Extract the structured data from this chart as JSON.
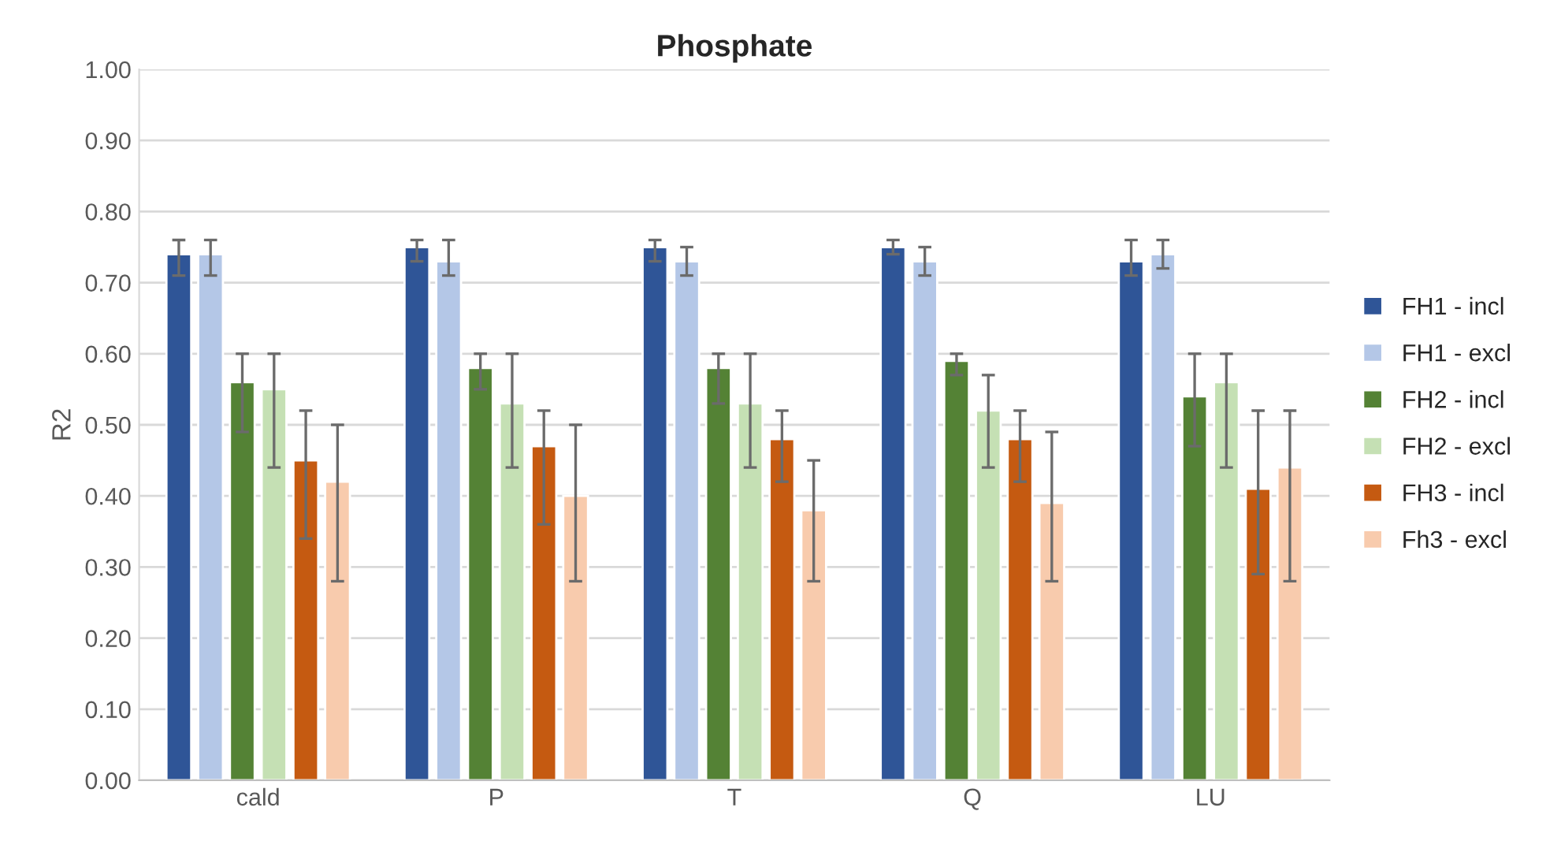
{
  "chart_data": {
    "type": "bar",
    "title": "Phosphate",
    "ylabel": "R2",
    "categories": [
      "cald",
      "P",
      "T",
      "Q",
      "LU"
    ],
    "ylim": [
      0,
      1
    ],
    "yticks": [
      {
        "value": 0,
        "label": "0.00"
      },
      {
        "value": 0.1,
        "label": "0.10"
      },
      {
        "value": 0.2,
        "label": "0.20"
      },
      {
        "value": 0.3,
        "label": "0.30"
      },
      {
        "value": 0.4,
        "label": "0.40"
      },
      {
        "value": 0.5,
        "label": "0.50"
      },
      {
        "value": 0.6,
        "label": "0.60"
      },
      {
        "value": 0.7,
        "label": "0.70"
      },
      {
        "value": 0.8,
        "label": "0.80"
      },
      {
        "value": 0.9,
        "label": "0.90"
      },
      {
        "value": 1,
        "label": "1.00"
      }
    ],
    "grid": "y",
    "legend": "right",
    "series": [
      {
        "name": "FH1 - incl",
        "color": "#2f5597",
        "values": [
          0.74,
          0.75,
          0.75,
          0.75,
          0.73
        ],
        "errors": [
          [
            0.71,
            0.76
          ],
          [
            0.73,
            0.76
          ],
          [
            0.73,
            0.76
          ],
          [
            0.74,
            0.76
          ],
          [
            0.71,
            0.76
          ]
        ]
      },
      {
        "name": "FH1 - excl",
        "color": "#b4c7e7",
        "values": [
          0.74,
          0.73,
          0.73,
          0.73,
          0.74
        ],
        "errors": [
          [
            0.71,
            0.76
          ],
          [
            0.71,
            0.76
          ],
          [
            0.71,
            0.75
          ],
          [
            0.71,
            0.75
          ],
          [
            0.72,
            0.76
          ]
        ]
      },
      {
        "name": "FH2 - incl",
        "color": "#548235",
        "values": [
          0.56,
          0.58,
          0.58,
          0.59,
          0.54
        ],
        "errors": [
          [
            0.49,
            0.6
          ],
          [
            0.55,
            0.6
          ],
          [
            0.53,
            0.6
          ],
          [
            0.57,
            0.6
          ],
          [
            0.47,
            0.6
          ]
        ]
      },
      {
        "name": "FH2 - excl",
        "color": "#c5e0b4",
        "values": [
          0.55,
          0.53,
          0.53,
          0.52,
          0.56
        ],
        "errors": [
          [
            0.44,
            0.6
          ],
          [
            0.44,
            0.6
          ],
          [
            0.44,
            0.6
          ],
          [
            0.44,
            0.57
          ],
          [
            0.44,
            0.6
          ]
        ]
      },
      {
        "name": "FH3 - incl",
        "color": "#c55a11",
        "values": [
          0.45,
          0.47,
          0.48,
          0.48,
          0.41
        ],
        "errors": [
          [
            0.34,
            0.52
          ],
          [
            0.36,
            0.52
          ],
          [
            0.42,
            0.52
          ],
          [
            0.42,
            0.52
          ],
          [
            0.29,
            0.52
          ]
        ]
      },
      {
        "name": "Fh3 - excl",
        "color": "#f8cbad",
        "values": [
          0.42,
          0.4,
          0.38,
          0.39,
          0.44
        ],
        "errors": [
          [
            0.28,
            0.5
          ],
          [
            0.28,
            0.5
          ],
          [
            0.28,
            0.45
          ],
          [
            0.28,
            0.49
          ],
          [
            0.28,
            0.52
          ]
        ]
      }
    ]
  }
}
